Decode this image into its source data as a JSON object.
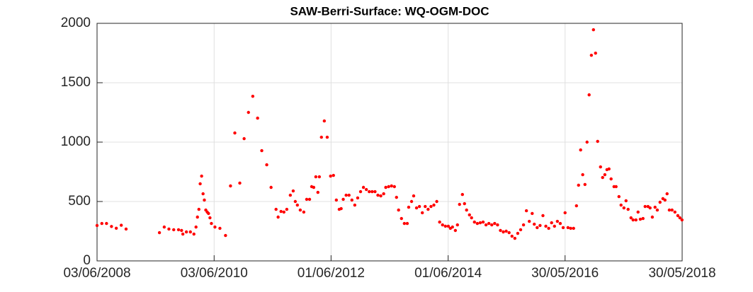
{
  "chart_data": {
    "type": "scatter",
    "title": "SAW-Berri-Surface: WQ-OGM-DOC",
    "color": "#ff0000",
    "grid": true,
    "xlim": [
      "03/06/2008",
      "30/05/2018"
    ],
    "xticks": [
      "03/06/2008",
      "03/06/2010",
      "01/06/2012",
      "01/06/2014",
      "30/05/2016",
      "30/05/2018"
    ],
    "ylim": [
      0,
      2000
    ],
    "yticks": [
      0,
      500,
      1000,
      1500,
      2000
    ],
    "x": [
      "03/06/2008",
      "03/07/2008",
      "01/08/2008",
      "01/09/2008",
      "01/10/2008",
      "01/11/2008",
      "01/12/2008",
      "27/06/2009",
      "27/07/2009",
      "25/08/2009",
      "24/09/2009",
      "24/10/2009",
      "12/11/2009",
      "20/11/2009",
      "12/12/2009",
      "06/01/2010",
      "28/01/2010",
      "10/02/2010",
      "19/02/2010",
      "28/02/2010",
      "08/03/2010",
      "17/03/2010",
      "26/03/2010",
      "03/04/2010",
      "12/04/2010",
      "21/04/2010",
      "29/04/2010",
      "08/05/2010",
      "17/05/2010",
      "08/06/2010",
      "09/07/2010",
      "13/08/2010",
      "13/09/2010",
      "10/10/2010",
      "10/11/2010",
      "07/12/2010",
      "03/01/2011",
      "30/01/2011",
      "01/03/2011",
      "27/03/2011",
      "27/04/2011",
      "24/05/2011",
      "24/06/2011",
      "07/07/2011",
      "25/07/2011",
      "12/08/2011",
      "30/08/2011",
      "21/09/2011",
      "09/10/2011",
      "22/10/2011",
      "04/11/2011",
      "22/11/2011",
      "14/12/2011",
      "01/01/2012",
      "19/01/2012",
      "01/02/2012",
      "14/02/2012",
      "27/02/2012",
      "11/03/2012",
      "20/03/2012",
      "02/04/2012",
      "20/04/2012",
      "08/05/2012",
      "29/05/2012",
      "16/06/2012",
      "04/07/2012",
      "22/07/2012",
      "03/08/2012",
      "16/08/2012",
      "03/09/2012",
      "21/09/2012",
      "09/10/2012",
      "27/10/2012",
      "14/11/2012",
      "02/12/2012",
      "20/12/2012",
      "07/01/2013",
      "25/01/2013",
      "12/02/2013",
      "02/03/2013",
      "20/03/2013",
      "07/04/2013",
      "25/04/2013",
      "08/05/2013",
      "26/05/2013",
      "13/06/2013",
      "01/07/2013",
      "14/07/2013",
      "27/07/2013",
      "14/08/2013",
      "01/09/2013",
      "19/09/2013",
      "28/09/2013",
      "16/10/2013",
      "29/10/2013",
      "16/11/2013",
      "04/12/2013",
      "22/12/2013",
      "09/01/2014",
      "27/01/2014",
      "14/02/2014",
      "04/03/2014",
      "22/03/2014",
      "09/04/2014",
      "27/04/2014",
      "15/05/2014",
      "02/06/2014",
      "15/06/2014",
      "28/06/2014",
      "16/07/2014",
      "29/07/2014",
      "11/08/2014",
      "29/08/2014",
      "11/09/2014",
      "24/09/2014",
      "12/10/2014",
      "25/10/2014",
      "12/11/2014",
      "30/11/2014",
      "18/12/2014",
      "05/01/2015",
      "23/01/2015",
      "10/02/2015",
      "28/02/2015",
      "18/03/2015",
      "05/04/2015",
      "23/04/2015",
      "11/05/2015",
      "29/05/2015",
      "16/06/2015",
      "04/07/2015",
      "22/07/2015",
      "09/08/2015",
      "27/08/2015",
      "14/09/2015",
      "02/10/2015",
      "20/10/2015",
      "07/11/2015",
      "20/11/2015",
      "08/12/2015",
      "26/12/2015",
      "13/01/2016",
      "31/01/2016",
      "18/02/2016",
      "07/03/2016",
      "25/03/2016",
      "12/04/2016",
      "30/04/2016",
      "18/05/2016",
      "30/05/2016",
      "17/06/2016",
      "04/07/2016",
      "22/07/2016",
      "09/08/2016",
      "22/08/2016",
      "04/09/2016",
      "17/09/2016",
      "01/10/2016",
      "14/10/2016",
      "27/10/2016",
      "10/11/2016",
      "23/11/2016",
      "06/12/2016",
      "19/12/2016",
      "06/01/2017",
      "19/01/2017",
      "02/02/2017",
      "15/02/2017",
      "28/02/2017",
      "13/03/2017",
      "31/03/2017",
      "13/04/2017",
      "01/05/2017",
      "14/05/2017",
      "01/06/2017",
      "14/06/2017",
      "27/06/2017",
      "15/07/2017",
      "28/07/2017",
      "15/08/2017",
      "28/08/2017",
      "11/09/2017",
      "28/09/2017",
      "11/10/2017",
      "29/10/2017",
      "11/11/2017",
      "25/11/2017",
      "12/12/2017",
      "26/12/2017",
      "12/01/2018",
      "30/01/2018",
      "12/02/2018",
      "25/02/2018",
      "11/03/2018",
      "28/03/2018",
      "15/04/2018",
      "03/05/2018",
      "16/05/2018",
      "29/05/2018"
    ],
    "values": [
      298,
      315,
      315,
      290,
      275,
      300,
      268,
      238,
      285,
      268,
      262,
      262,
      256,
      226,
      244,
      244,
      226,
      285,
      369,
      434,
      649,
      714,
      565,
      512,
      428,
      411,
      399,
      363,
      315,
      285,
      274,
      214,
      631,
      1077,
      655,
      1029,
      1250,
      1386,
      1202,
      928,
      809,
      619,
      434,
      369,
      416,
      411,
      434,
      553,
      589,
      500,
      470,
      428,
      411,
      518,
      518,
      625,
      619,
      708,
      577,
      708,
      1041,
      1178,
      1041,
      714,
      720,
      512,
      434,
      440,
      518,
      553,
      553,
      512,
      470,
      530,
      583,
      619,
      601,
      583,
      583,
      583,
      553,
      547,
      565,
      619,
      625,
      631,
      625,
      535,
      428,
      357,
      315,
      315,
      452,
      500,
      547,
      446,
      458,
      405,
      458,
      434,
      458,
      470,
      500,
      327,
      303,
      292,
      292,
      274,
      285,
      256,
      303,
      476,
      559,
      482,
      428,
      387,
      363,
      327,
      315,
      321,
      327,
      303,
      315,
      303,
      315,
      303,
      256,
      244,
      250,
      238,
      208,
      190,
      232,
      262,
      303,
      422,
      333,
      399,
      309,
      280,
      298,
      381,
      292,
      274,
      321,
      292,
      333,
      315,
      280,
      405,
      280,
      274,
      274,
      464,
      637,
      934,
      726,
      643,
      1000,
      1398,
      1731,
      1946,
      1749,
      1006,
      791,
      702,
      726,
      768,
      774,
      690,
      625,
      625,
      541,
      470,
      446,
      506,
      434,
      363,
      345,
      345,
      411,
      351,
      357,
      458,
      458,
      446,
      369,
      452,
      428,
      494,
      524,
      512,
      565,
      428,
      428,
      411,
      381,
      363,
      345
    ]
  }
}
